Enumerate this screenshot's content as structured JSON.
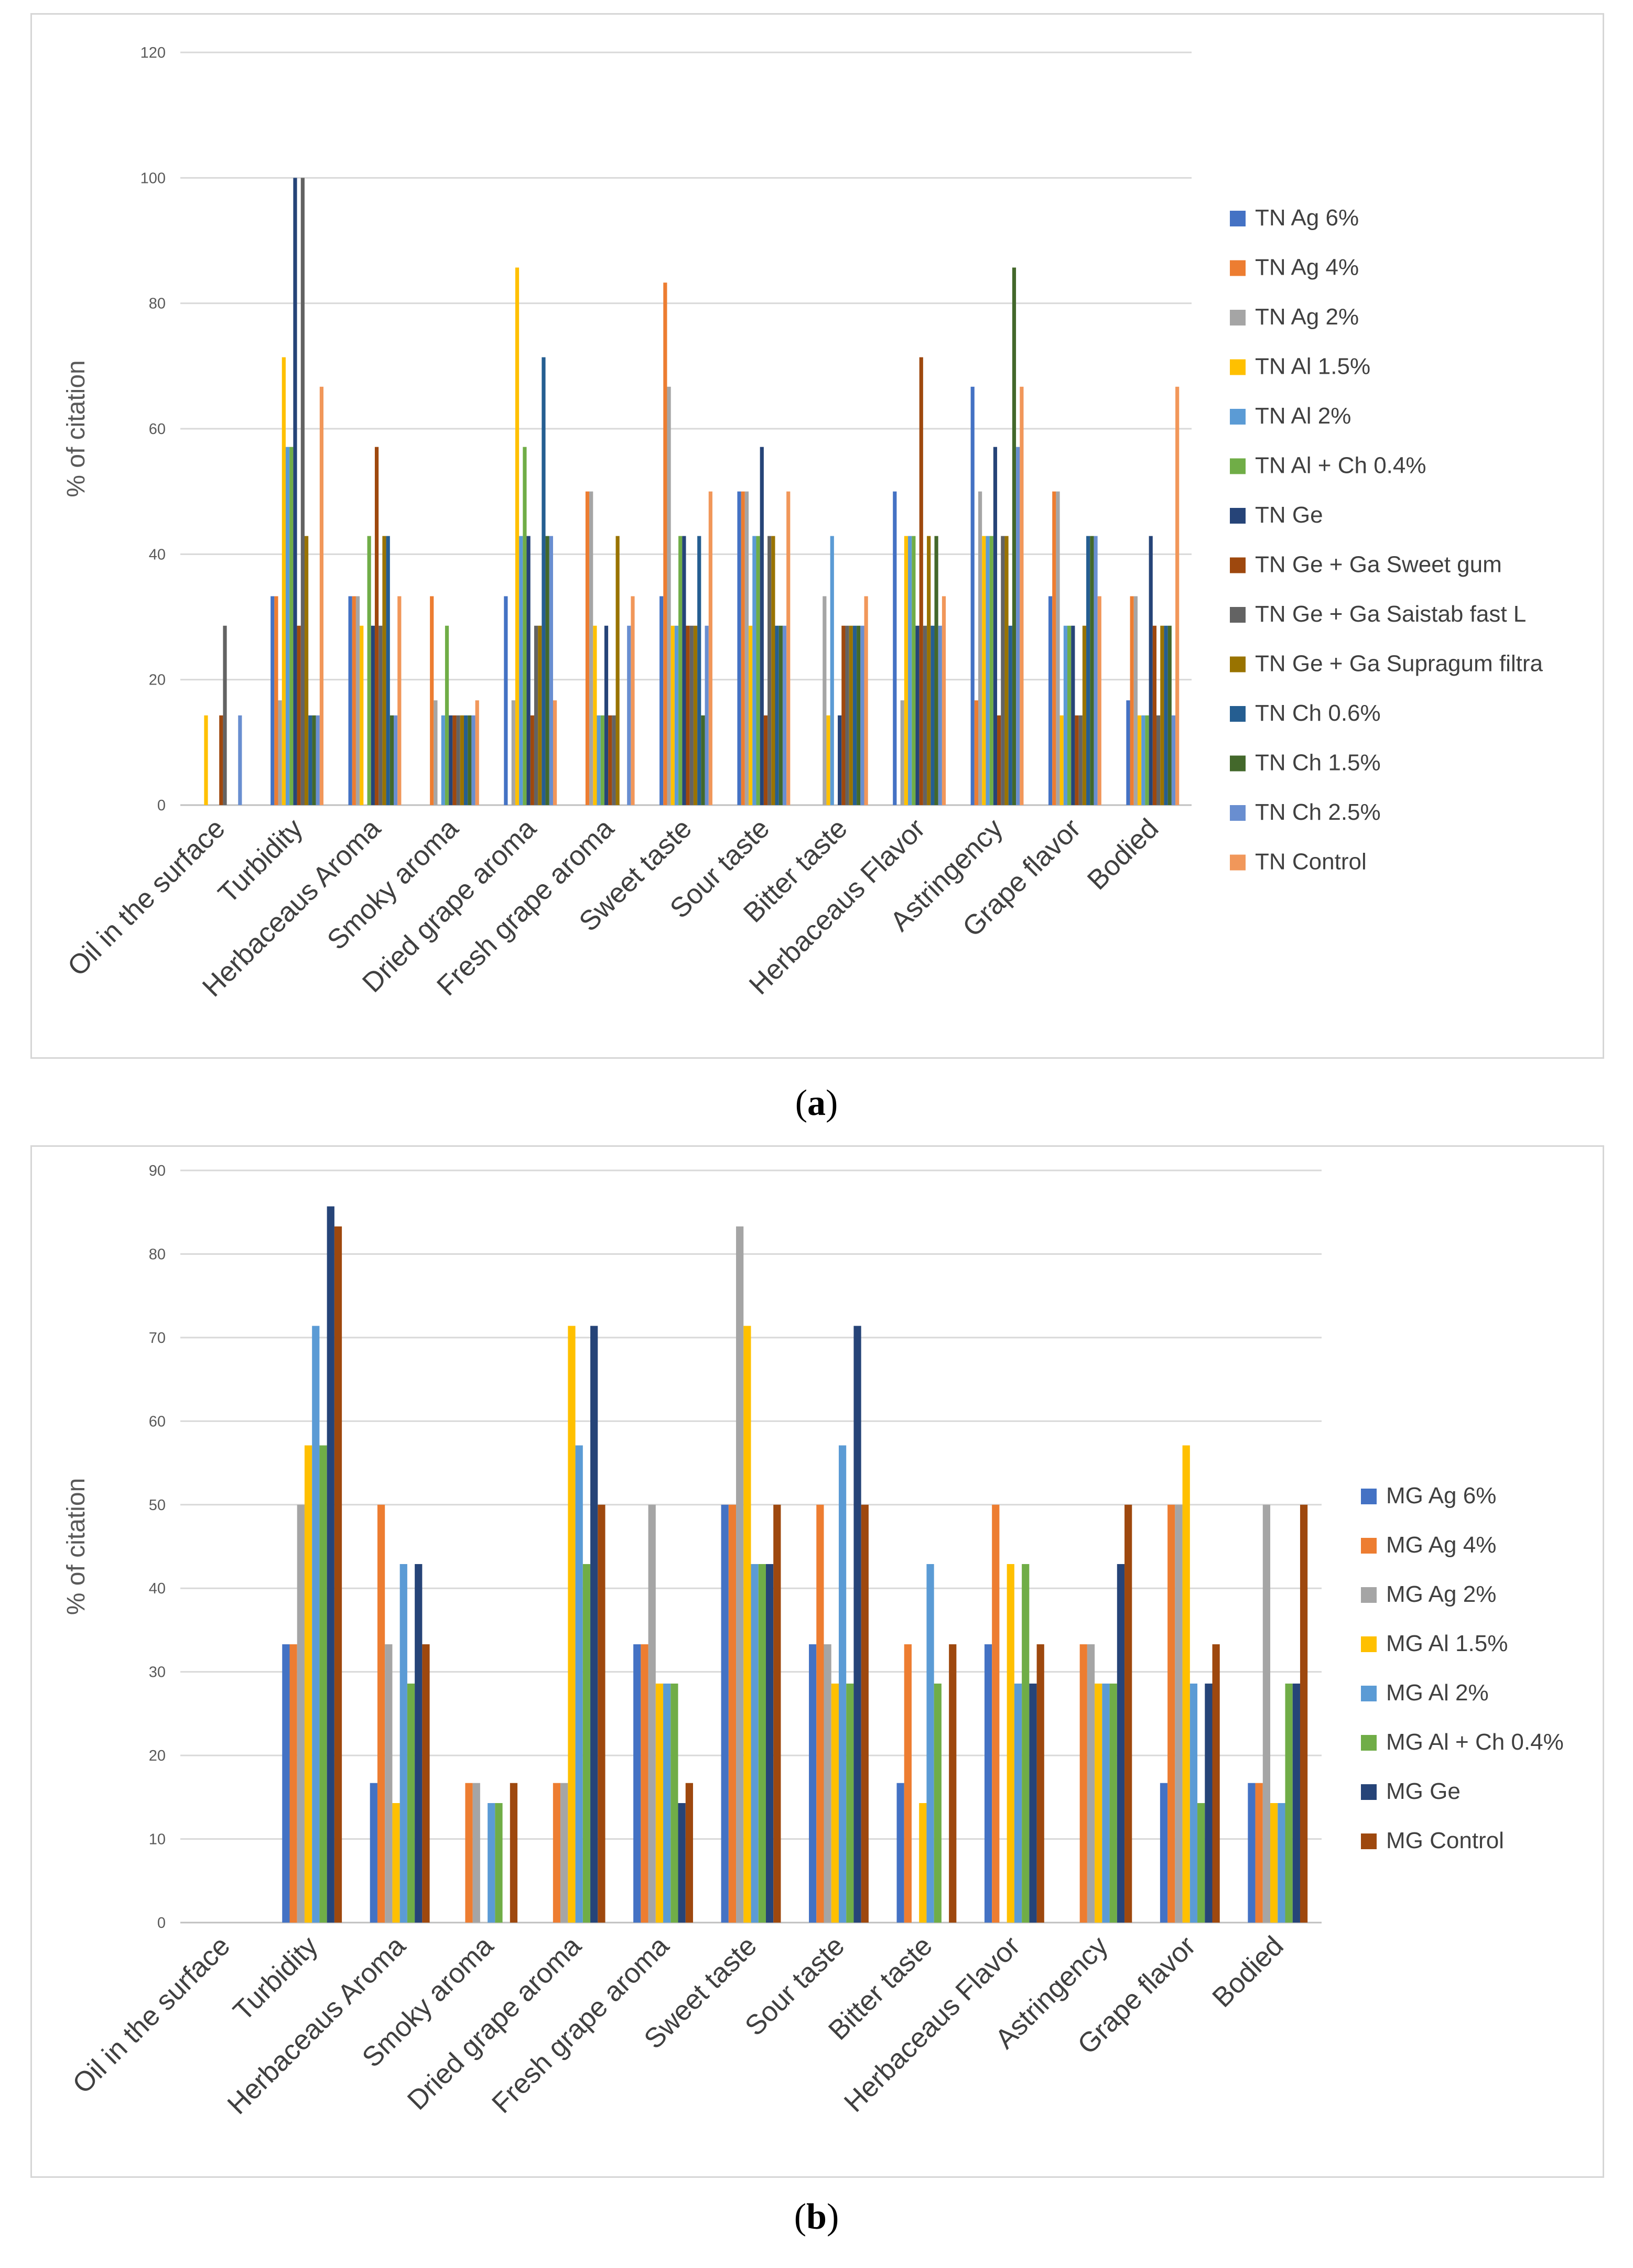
{
  "labels": {
    "a_open": "(",
    "a_letter": "a",
    "a_close": ")",
    "b_open": "(",
    "b_letter": "b",
    "b_close": ")"
  },
  "chart_data": [
    {
      "id": "a",
      "type": "bar",
      "ylabel": "% of citation",
      "ylim": [
        0,
        120
      ],
      "yticks": [
        0,
        20,
        40,
        60,
        80,
        100,
        120
      ],
      "legend_position": "right",
      "categories": [
        "Oil in the surface",
        "Turbidity",
        "Herbaceaus Aroma",
        "Smoky aroma",
        "Dried grape aroma",
        "Fresh grape aroma",
        "Sweet taste",
        "Sour taste",
        "Bitter taste",
        "Herbaceaus Flavor",
        "Astringency",
        "Grape flavor",
        "Bodied"
      ],
      "series": [
        {
          "name": "TN Ag 6%",
          "color": "#4472c4",
          "values": [
            0,
            33.3,
            33.3,
            0,
            33.3,
            0,
            33.3,
            50,
            0,
            50,
            66.7,
            33.3,
            16.7
          ]
        },
        {
          "name": "TN Ag 4%",
          "color": "#ed7d31",
          "values": [
            0,
            33.3,
            33.3,
            33.3,
            0,
            50,
            83.3,
            50,
            0,
            0,
            16.7,
            50,
            33.3
          ]
        },
        {
          "name": "TN Ag 2%",
          "color": "#a5a5a5",
          "values": [
            0,
            16.7,
            33.3,
            16.7,
            16.7,
            50,
            66.7,
            50,
            33.3,
            16.7,
            50,
            50,
            33.3
          ]
        },
        {
          "name": "TN Al 1.5%",
          "color": "#ffc000",
          "values": [
            14.3,
            71.4,
            28.6,
            0,
            85.7,
            28.6,
            28.6,
            28.6,
            14.3,
            42.9,
            42.9,
            14.3,
            14.3
          ]
        },
        {
          "name": "TN Al 2%",
          "color": "#5b9bd5",
          "values": [
            0,
            57.1,
            0,
            14.3,
            42.9,
            14.3,
            28.6,
            42.9,
            42.9,
            42.9,
            42.9,
            28.6,
            14.3
          ]
        },
        {
          "name": "TN Al + Ch 0.4%",
          "color": "#70ad47",
          "values": [
            0,
            57.1,
            42.9,
            28.6,
            57.1,
            14.3,
            42.9,
            42.9,
            0,
            42.9,
            42.9,
            28.6,
            14.3
          ]
        },
        {
          "name": "TN Ge",
          "color": "#264478",
          "values": [
            0,
            100,
            28.6,
            14.3,
            42.9,
            28.6,
            42.9,
            57.1,
            14.3,
            28.6,
            57.1,
            28.6,
            42.9
          ]
        },
        {
          "name": "TN Ge + Ga Sweet gum",
          "color": "#9e480e",
          "values": [
            14.3,
            28.6,
            57.1,
            14.3,
            14.3,
            14.3,
            28.6,
            14.3,
            28.6,
            71.4,
            14.3,
            14.3,
            28.6
          ]
        },
        {
          "name": "TN Ge + Ga Saistab fast L",
          "color": "#636363",
          "values": [
            28.6,
            100,
            28.6,
            14.3,
            28.6,
            14.3,
            28.6,
            42.9,
            28.6,
            28.6,
            42.9,
            14.3,
            14.3
          ]
        },
        {
          "name": "TN Ge + Ga Supragum filtra",
          "color": "#997300",
          "values": [
            0,
            42.9,
            42.9,
            14.3,
            28.6,
            42.9,
            28.6,
            42.9,
            28.6,
            42.9,
            42.9,
            28.6,
            28.6
          ]
        },
        {
          "name": "TN Ch 0.6%",
          "color": "#255e91",
          "values": [
            0,
            14.3,
            42.9,
            14.3,
            71.4,
            0,
            42.9,
            28.6,
            28.6,
            28.6,
            28.6,
            42.9,
            28.6
          ]
        },
        {
          "name": "TN Ch 1.5%",
          "color": "#43682b",
          "values": [
            0,
            14.3,
            14.3,
            14.3,
            42.9,
            0,
            14.3,
            28.6,
            28.6,
            42.9,
            85.7,
            42.9,
            28.6
          ]
        },
        {
          "name": "TN Ch 2.5%",
          "color": "#698ed0",
          "values": [
            14.3,
            14.3,
            14.3,
            14.3,
            42.9,
            28.6,
            28.6,
            28.6,
            28.6,
            28.6,
            57.1,
            42.9,
            14.3
          ]
        },
        {
          "name": "TN Control",
          "color": "#f1975a",
          "values": [
            0,
            66.7,
            33.3,
            16.7,
            16.7,
            33.3,
            50,
            50,
            33.3,
            33.3,
            66.7,
            33.3,
            66.7
          ]
        }
      ]
    },
    {
      "id": "b",
      "type": "bar",
      "ylabel": "% of citation",
      "ylim": [
        0,
        90
      ],
      "yticks": [
        0,
        10,
        20,
        30,
        40,
        50,
        60,
        70,
        80,
        90
      ],
      "legend_position": "right",
      "categories": [
        "Oil in the surface",
        "Turbidity",
        "Herbaceaus Aroma",
        "Smoky aroma",
        "Dried grape aroma",
        "Fresh grape aroma",
        "Sweet taste",
        "Sour taste",
        "Bitter taste",
        "Herbaceaus Flavor",
        "Astringency",
        "Grape flavor",
        "Bodied"
      ],
      "series": [
        {
          "name": "MG Ag 6%",
          "color": "#4472c4",
          "values": [
            0,
            33.3,
            16.7,
            0,
            0,
            33.3,
            50,
            33.3,
            16.7,
            33.3,
            0,
            16.7,
            16.7
          ]
        },
        {
          "name": "MG Ag 4%",
          "color": "#ed7d31",
          "values": [
            0,
            33.3,
            50,
            16.7,
            16.7,
            33.3,
            50,
            50,
            33.3,
            50,
            33.3,
            50,
            16.7
          ]
        },
        {
          "name": "MG Ag 2%",
          "color": "#a5a5a5",
          "values": [
            0,
            50,
            33.3,
            16.7,
            16.7,
            50,
            83.3,
            33.3,
            0,
            0,
            33.3,
            50,
            50
          ]
        },
        {
          "name": "MG Al 1.5%",
          "color": "#ffc000",
          "values": [
            0,
            57.1,
            14.3,
            0,
            71.4,
            28.6,
            71.4,
            28.6,
            14.3,
            42.9,
            28.6,
            57.1,
            14.3
          ]
        },
        {
          "name": "MG Al 2%",
          "color": "#5b9bd5",
          "values": [
            0,
            71.4,
            42.9,
            14.3,
            57.1,
            28.6,
            42.9,
            57.1,
            42.9,
            28.6,
            28.6,
            28.6,
            14.3
          ]
        },
        {
          "name": "MG Al + Ch 0.4%",
          "color": "#70ad47",
          "values": [
            0,
            57.1,
            28.6,
            14.3,
            42.9,
            28.6,
            42.9,
            28.6,
            28.6,
            42.9,
            28.6,
            14.3,
            28.6
          ]
        },
        {
          "name": "MG Ge",
          "color": "#264478",
          "values": [
            0,
            85.7,
            42.9,
            0,
            71.4,
            14.3,
            42.9,
            71.4,
            0,
            28.6,
            42.9,
            28.6,
            28.6
          ]
        },
        {
          "name": "MG Control",
          "color": "#9e480e",
          "values": [
            0,
            83.3,
            33.3,
            16.7,
            50,
            16.7,
            50,
            50,
            33.3,
            33.3,
            50,
            33.3,
            50
          ]
        }
      ]
    }
  ]
}
